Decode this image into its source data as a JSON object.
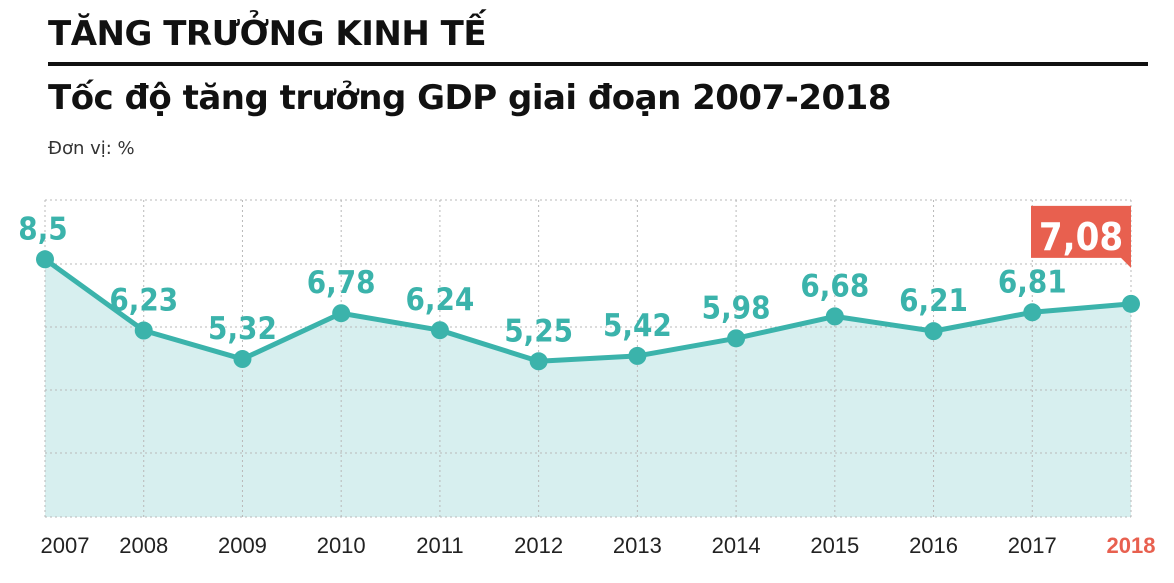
{
  "header": {
    "kicker": "TĂNG TRƯỞNG KINH TẾ",
    "title": "Tốc độ tăng trưởng GDP giai đoạn 2007-2018",
    "unit": "Đơn vị: %"
  },
  "chart_data": {
    "type": "area",
    "categories": [
      "2007",
      "2008",
      "2009",
      "2010",
      "2011",
      "2012",
      "2013",
      "2014",
      "2015",
      "2016",
      "2017",
      "2018"
    ],
    "values": [
      8.5,
      6.23,
      5.32,
      6.78,
      6.24,
      5.25,
      5.42,
      5.98,
      6.68,
      6.21,
      6.81,
      7.08
    ],
    "labels": [
      "8,5",
      "6,23",
      "5,32",
      "6,78",
      "6,24",
      "5,25",
      "5,42",
      "5,98",
      "6,68",
      "6,21",
      "6,81",
      "7,08"
    ],
    "highlight_index": 11,
    "grid": true,
    "colors": {
      "line": "#3bb3ab",
      "fill": "#d7efef",
      "highlight": "#e8604f",
      "grid": "#b8b8b8",
      "axis_text": "#222"
    }
  }
}
